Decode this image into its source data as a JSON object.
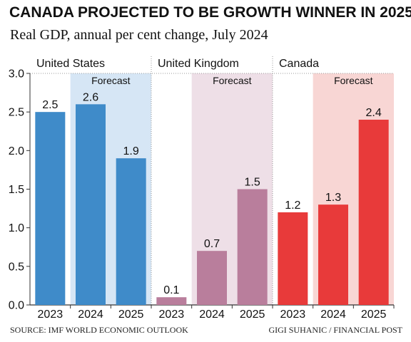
{
  "title": "CANADA PROJECTED TO BE GROWTH WINNER IN 2025",
  "subtitle": "Real GDP, annual per cent change, July 2024",
  "source": "SOURCE: IMF WORLD ECONOMIC OUTLOOK",
  "credit": "GIGI SUHANIC / FINANCIAL POST",
  "chart_data": {
    "type": "bar",
    "ylim": [
      0,
      3.0
    ],
    "yticks": [
      0.0,
      0.5,
      1.0,
      1.5,
      2.0,
      2.5,
      3.0
    ],
    "ytick_labels": [
      "0.0",
      "0.5",
      "1.0",
      "1.5",
      "2.0",
      "2.5",
      "3.0"
    ],
    "grid": false,
    "forecast_label": "Forecast",
    "forecast_years": [
      "2024",
      "2025"
    ],
    "groups": [
      {
        "name": "United States",
        "color": "#3f8bc9",
        "forecast_bg": "#d6e6f5",
        "categories": [
          "2023",
          "2024",
          "2025"
        ],
        "values": [
          2.5,
          2.6,
          1.9
        ],
        "labels": [
          "2.5",
          "2.6",
          "1.9"
        ]
      },
      {
        "name": "United Kingdom",
        "color": "#b97e9c",
        "forecast_bg": "#eedfe7",
        "categories": [
          "2023",
          "2024",
          "2025"
        ],
        "values": [
          0.1,
          0.7,
          1.5
        ],
        "labels": [
          "0.1",
          "0.7",
          "1.5"
        ]
      },
      {
        "name": "Canada",
        "color": "#e83a3a",
        "forecast_bg": "#f8d6d4",
        "categories": [
          "2023",
          "2024",
          "2025"
        ],
        "values": [
          1.2,
          1.3,
          2.4
        ],
        "labels": [
          "1.2",
          "1.3",
          "2.4"
        ]
      }
    ]
  }
}
